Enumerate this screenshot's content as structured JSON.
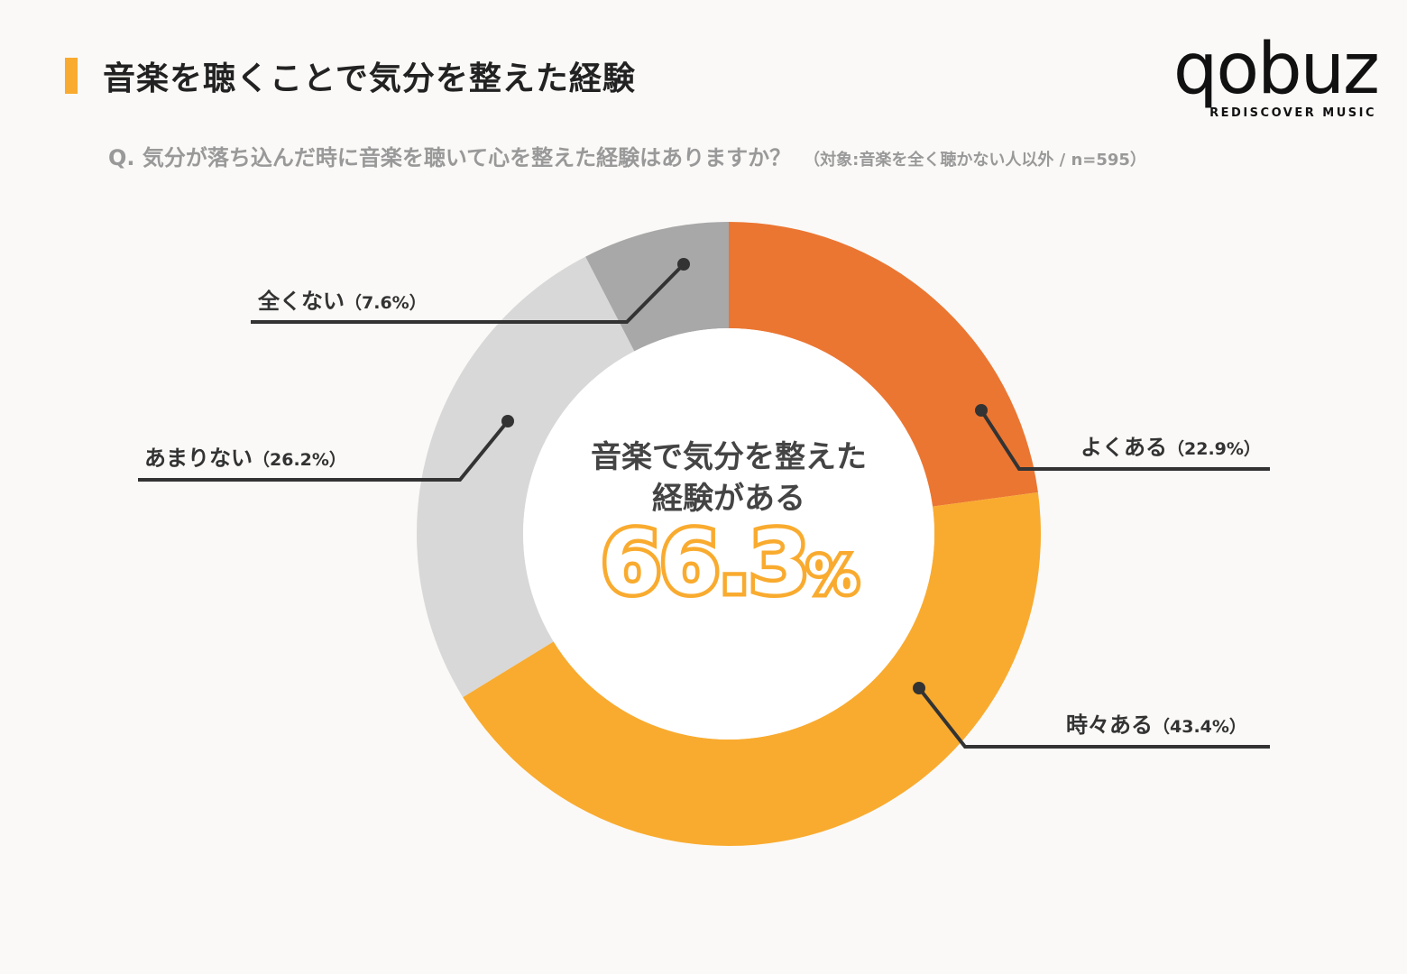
{
  "title": "音楽を聴くことで気分を整えた経験",
  "question": "Q.  気分が落ち込んだ時に音楽を聴いて心を整えた経験はありますか？",
  "target_note": "（対象:音楽を全く聴かない人以外 / n=595）",
  "logo": {
    "word": "qobuz",
    "tagline": "REDISCOVER MUSIC"
  },
  "center": {
    "line1": "音楽で気分を整えた",
    "line2": "経験がある",
    "value": "66.3",
    "unit": "%"
  },
  "chart_data": {
    "type": "pie",
    "title": "音楽を聴くことで気分を整えた経験",
    "categories": [
      "よくある",
      "時々ある",
      "あまりない",
      "全くない"
    ],
    "values": [
      22.9,
      43.4,
      26.2,
      7.6
    ],
    "value_labels": [
      "（22.9%）",
      "（43.4%）",
      "（26.2%）",
      "（7.6%）"
    ],
    "colors": [
      "#eb7632",
      "#f9ab2f",
      "#d8d8d8",
      "#a8a8a8"
    ],
    "donut": true,
    "center_total_value": 66.3,
    "legend": "callout-labels"
  }
}
